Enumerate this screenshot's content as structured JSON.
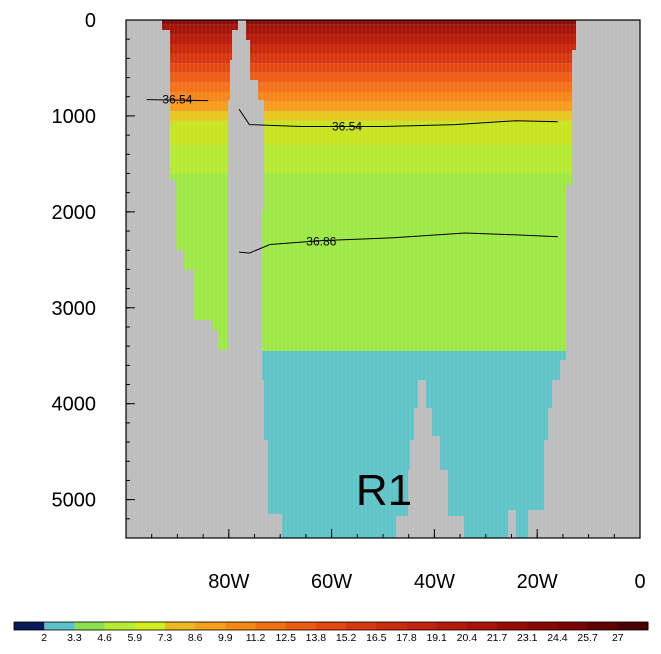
{
  "chart_data": {
    "type": "heatmap",
    "title": "",
    "xlabel": "",
    "ylabel": "",
    "xlim": [
      -100,
      0
    ],
    "ylim": [
      5400,
      0
    ],
    "x_ticks": [
      {
        "value": -80,
        "label": "80W"
      },
      {
        "value": -60,
        "label": "60W"
      },
      {
        "value": -40,
        "label": "40W"
      },
      {
        "value": -20,
        "label": "20W"
      },
      {
        "value": 0,
        "label": "0"
      }
    ],
    "y_ticks": [
      {
        "value": 0,
        "label": "0"
      },
      {
        "value": 1000,
        "label": "1000"
      },
      {
        "value": 2000,
        "label": "2000"
      },
      {
        "value": 3000,
        "label": "3000"
      },
      {
        "value": 4000,
        "label": "4000"
      },
      {
        "value": 5000,
        "label": "5000"
      }
    ],
    "region_label": "R1",
    "colorbar": {
      "levels": [
        "2",
        "3.3",
        "4.6",
        "5.9",
        "7.3",
        "8.6",
        "9.9",
        "11.2",
        "12.5",
        "13.8",
        "15.2",
        "16.5",
        "17.8",
        "19.1",
        "20.4",
        "21.7",
        "23.1",
        "24.4",
        "25.7",
        "27"
      ],
      "colors": [
        "#0a1a5a",
        "#5bc0c8",
        "#8de050",
        "#b6ec32",
        "#d2ee1e",
        "#f0b820",
        "#f4a018",
        "#f48a14",
        "#f07010",
        "#ec5a10",
        "#e44810",
        "#d83810",
        "#cc2c0e",
        "#c0220c",
        "#b41a0a",
        "#a81208",
        "#980c06",
        "#880806",
        "#780404",
        "#600202",
        "#4a0000"
      ]
    },
    "fill_bands": [
      {
        "depth": [
          0,
          50
        ],
        "value": 24.4,
        "color": "#8a0a06"
      },
      {
        "depth": [
          50,
          150
        ],
        "value": 23.1,
        "color": "#a51208"
      },
      {
        "depth": [
          150,
          250
        ],
        "value": 21.7,
        "color": "#b81a0a"
      },
      {
        "depth": [
          250,
          350
        ],
        "value": 20.4,
        "color": "#c9280c"
      },
      {
        "depth": [
          350,
          450
        ],
        "value": 19.1,
        "color": "#d8360e"
      },
      {
        "depth": [
          450,
          550
        ],
        "value": 17.8,
        "color": "#e44812"
      },
      {
        "depth": [
          550,
          650
        ],
        "value": 16.5,
        "color": "#ee5c14"
      },
      {
        "depth": [
          650,
          750
        ],
        "value": 15.2,
        "color": "#f47018"
      },
      {
        "depth": [
          750,
          850
        ],
        "value": 13.8,
        "color": "#f7861a"
      },
      {
        "depth": [
          850,
          950
        ],
        "value": 12.5,
        "color": "#f89c1c"
      },
      {
        "depth": [
          950,
          1050
        ],
        "value": 9.9,
        "color": "#e8c81e"
      },
      {
        "depth": [
          1050,
          1300
        ],
        "value": 8.6,
        "color": "#c8e41e"
      },
      {
        "depth": [
          1300,
          1600
        ],
        "value": 7.3,
        "color": "#b4ea30"
      },
      {
        "depth": [
          1600,
          3750
        ],
        "value": 5.9,
        "color": "#9ee846"
      },
      {
        "depth": [
          3450,
          5400
        ],
        "value": 3.3,
        "color": "#5fc4c8"
      }
    ],
    "contours": [
      {
        "label": "36.54",
        "points": [
          [
            -96,
            830
          ],
          [
            -84,
            840
          ]
        ]
      },
      {
        "label": "36.54",
        "points": [
          [
            -78,
            930
          ],
          [
            -76,
            1090
          ],
          [
            -66,
            1110
          ],
          [
            -50,
            1110
          ],
          [
            -36,
            1090
          ],
          [
            -24,
            1050
          ],
          [
            -16,
            1060
          ]
        ]
      },
      {
        "label": "36.86",
        "points": [
          [
            -78,
            2420
          ],
          [
            -76,
            2430
          ],
          [
            -72,
            2340
          ],
          [
            -62,
            2300
          ],
          [
            -48,
            2270
          ],
          [
            -34,
            2220
          ],
          [
            -24,
            2240
          ],
          [
            -16,
            2260
          ]
        ]
      }
    ]
  }
}
